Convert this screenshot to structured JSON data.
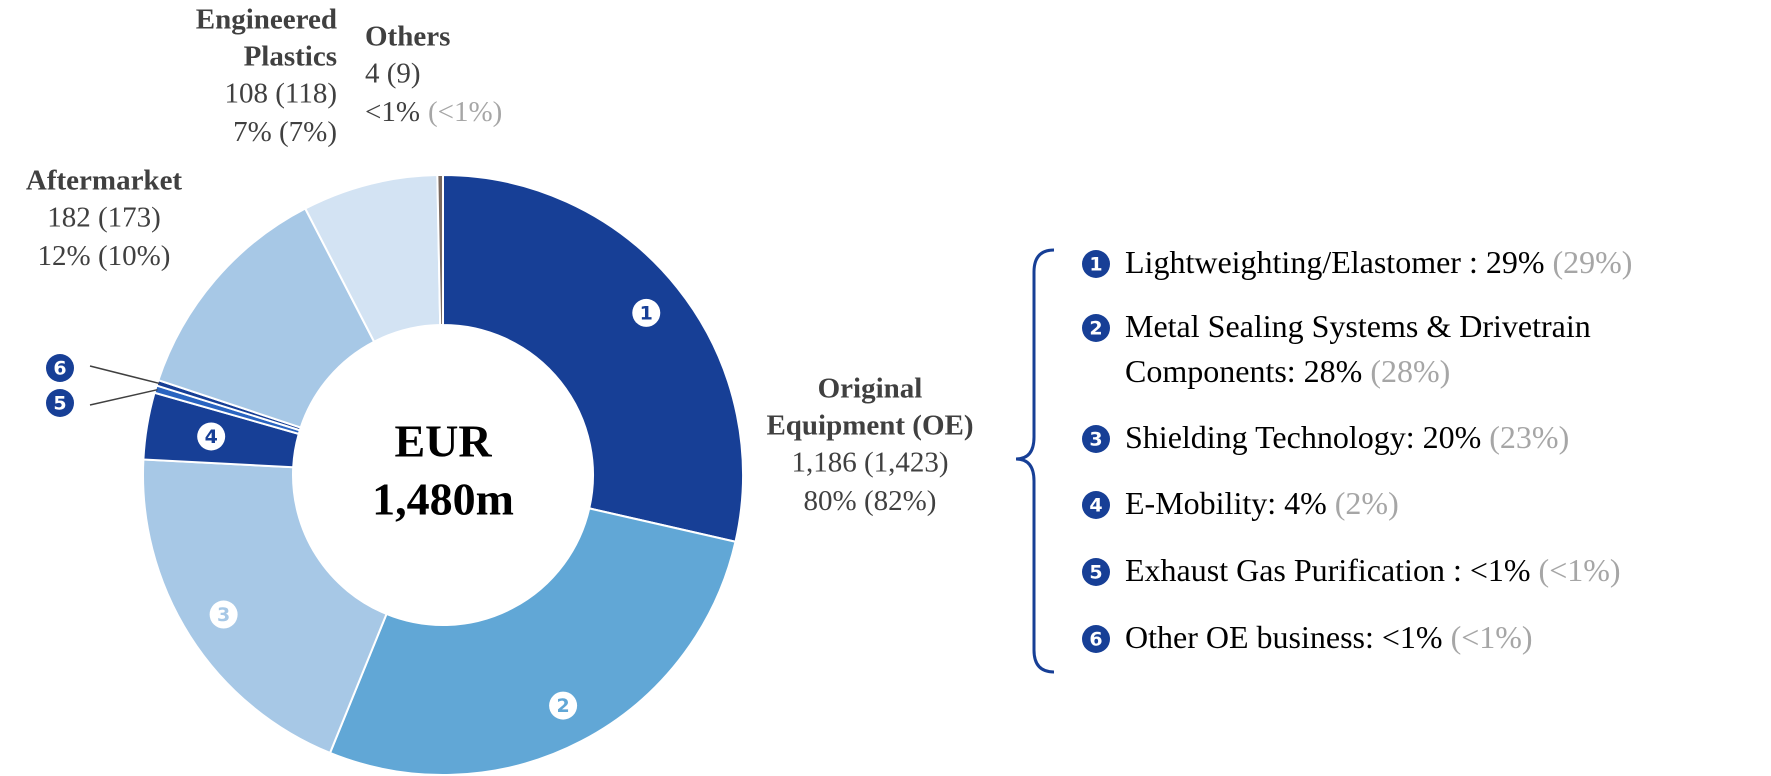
{
  "chart_data": {
    "type": "donut",
    "center_label": [
      "EUR",
      "1,480m"
    ],
    "segments": [
      {
        "value": 28.6,
        "color": "#173f96",
        "marker": "1",
        "legend": [
          "Lightweighting/Elastomer : 29%"
        ],
        "prior": "(29%)"
      },
      {
        "value": 27.6,
        "color": "#61a7d6",
        "marker": "2",
        "legend": [
          "Metal Sealing Systems & Drivetrain",
          "Components: 28%"
        ],
        "prior": "(28%)"
      },
      {
        "value": 19.7,
        "color": "#a7c8e6",
        "marker": "3",
        "legend": [
          "Shielding Technology: 20%"
        ],
        "prior": "(23%)"
      },
      {
        "value": 3.6,
        "color": "#173f96",
        "marker": "4",
        "legend": [
          "E-Mobility: 4%"
        ],
        "prior": "(2%)"
      },
      {
        "value": 0.4,
        "color": "#2a64c0",
        "marker": "5",
        "legend": [
          "Exhaust Gas Purification : <1%"
        ],
        "prior": "(<1%)"
      },
      {
        "value": 0.3,
        "color": "#173f96",
        "marker": "6",
        "legend": [
          "Other OE business:  <1%"
        ],
        "prior": "(<1%)"
      },
      {
        "value": 12.3,
        "color": "#a7c8e6"
      },
      {
        "value": 7.3,
        "color": "#d3e3f3"
      },
      {
        "value": 0.3,
        "color": "#7a6a60"
      }
    ],
    "callouts": [
      {
        "title": [
          "Original",
          "Equipment (OE)"
        ],
        "value": "1,186 (1,423)",
        "share": "80% (82%)"
      },
      {
        "title": [
          "Aftermarket"
        ],
        "value": "182 (173)",
        "share": "12% (10%)"
      },
      {
        "title": [
          "Engineered",
          "Plastics"
        ],
        "value": "108 (118)",
        "share": "7% (7%)"
      },
      {
        "title": [
          "Others"
        ],
        "value": "4 (9)",
        "share": "<1%",
        "share_prior": "(<1%)"
      }
    ]
  }
}
